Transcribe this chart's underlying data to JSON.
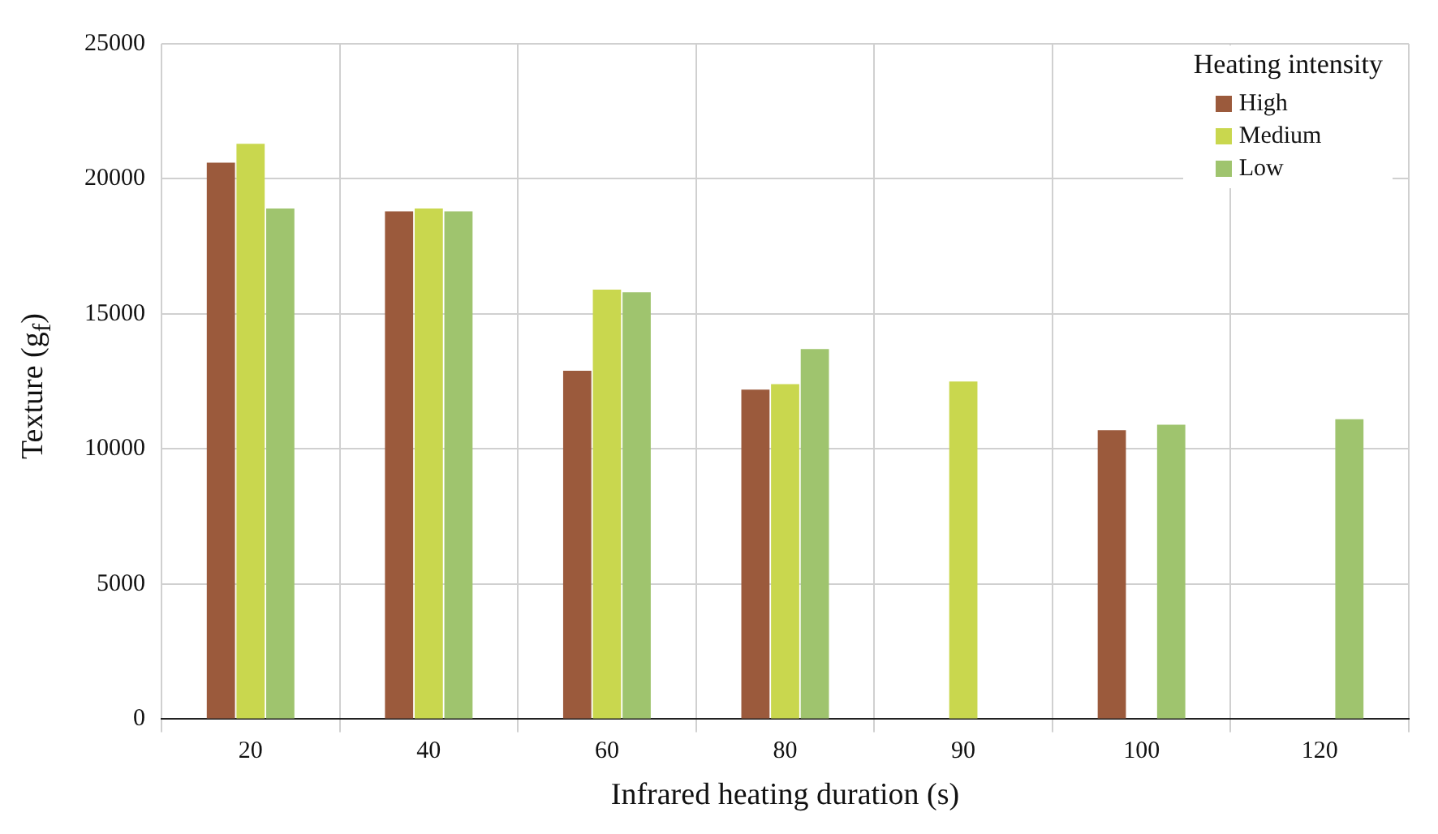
{
  "chart_data": {
    "type": "bar",
    "xlabel": "Infrared heating duration (s)",
    "ylabel": "Texture (g$_{f}$)",
    "legend_title": "Heating intensity",
    "categories": [
      "20",
      "40",
      "60",
      "80",
      "90",
      "100",
      "120"
    ],
    "series": [
      {
        "name": "High",
        "color": "#9b5a3c",
        "values": [
          20600,
          18800,
          12900,
          12200,
          null,
          10700,
          null
        ]
      },
      {
        "name": "Medium",
        "color": "#c9d74e",
        "values": [
          21300,
          18900,
          15900,
          12400,
          12500,
          null,
          null
        ]
      },
      {
        "name": "Low",
        "color": "#9fc46e",
        "values": [
          18900,
          18800,
          15800,
          13700,
          null,
          10900,
          11100
        ]
      }
    ],
    "ylim": [
      0,
      25000
    ],
    "yticks": [
      0,
      5000,
      10000,
      15000,
      20000,
      25000
    ],
    "grid": true,
    "legend": "top right"
  }
}
